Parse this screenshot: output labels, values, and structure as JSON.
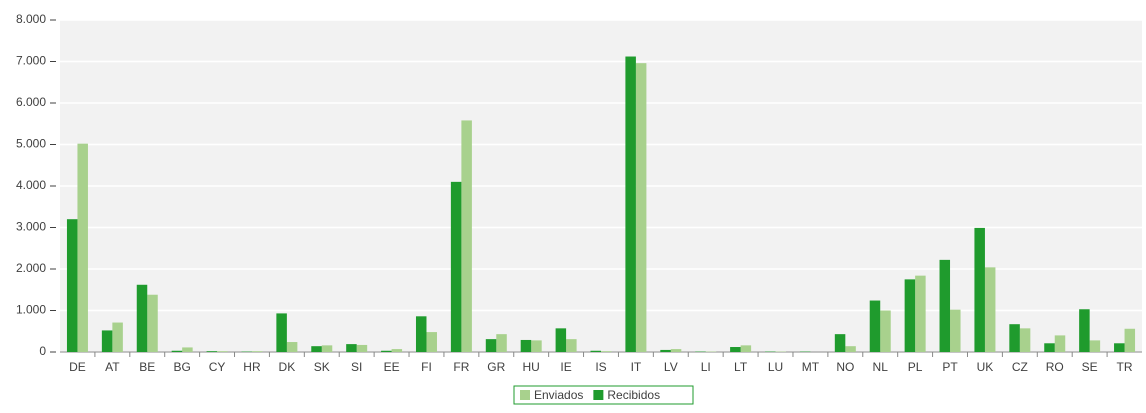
{
  "chart_data": {
    "type": "bar",
    "categories": [
      "DE",
      "AT",
      "BE",
      "BG",
      "CY",
      "HR",
      "DK",
      "SK",
      "SI",
      "EE",
      "FI",
      "FR",
      "GR",
      "HU",
      "IE",
      "IS",
      "IT",
      "LV",
      "LI",
      "LT",
      "LU",
      "MT",
      "NO",
      "NL",
      "PL",
      "PT",
      "UK",
      "CZ",
      "RO",
      "SE",
      "TR"
    ],
    "series": [
      {
        "name": "Enviados",
        "color": "#a8d18d",
        "values": [
          5020,
          710,
          1380,
          110,
          20,
          20,
          240,
          160,
          170,
          70,
          480,
          5580,
          430,
          280,
          310,
          20,
          6960,
          70,
          10,
          160,
          10,
          0,
          140,
          1000,
          1840,
          1020,
          2040,
          570,
          400,
          280,
          560
        ]
      },
      {
        "name": "Recibidos",
        "color": "#1f9b2d",
        "values": [
          3200,
          520,
          1620,
          30,
          20,
          10,
          930,
          140,
          190,
          30,
          860,
          4100,
          310,
          290,
          570,
          30,
          7120,
          50,
          10,
          120,
          10,
          10,
          430,
          1240,
          1750,
          2220,
          2990,
          670,
          210,
          1030,
          210
        ]
      }
    ],
    "ylim": [
      0,
      8000
    ],
    "yticks": [
      0,
      {
        "value": 1000,
        "label": "1.000"
      },
      {
        "value": 2000,
        "label": "2.000"
      },
      {
        "value": 3000,
        "label": "3.000"
      },
      {
        "value": 4000,
        "label": "4.000"
      },
      {
        "value": 5000,
        "label": "5.000"
      },
      {
        "value": 6000,
        "label": "6.000"
      },
      {
        "value": 7000,
        "label": "7.000"
      },
      {
        "value": 8000,
        "label": "8.000"
      }
    ],
    "grid": true,
    "legend": "bottom"
  }
}
